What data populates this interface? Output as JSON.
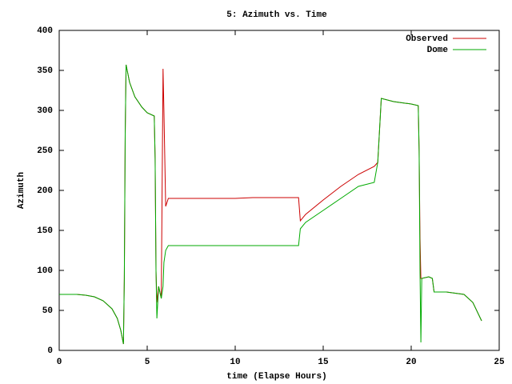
{
  "chart_data": {
    "type": "line",
    "title": "5: Azimuth vs. Time",
    "x_label": "time (Elapse Hours)",
    "y_label": "Azimuth",
    "x": [
      0,
      1,
      1.5,
      2,
      2.5,
      3,
      3.3,
      3.5,
      3.65,
      3.7,
      3.75,
      3.8,
      4,
      4.3,
      4.7,
      5,
      5.4,
      5.45,
      5.5,
      5.55,
      5.65,
      5.8,
      5.9,
      5.95,
      6.05,
      6.2,
      10,
      11,
      13.6,
      13.7,
      14,
      15,
      16,
      17,
      17.9,
      18.1,
      18.3,
      19,
      20,
      20.4,
      20.45,
      20.5,
      20.55,
      20.6,
      21,
      21.2,
      21.3,
      22,
      23,
      23.5,
      24
    ],
    "series": [
      {
        "name": "Observed",
        "color": "#cc0000",
        "values": [
          70,
          70,
          69,
          67,
          62,
          52,
          40,
          25,
          8,
          90,
          270,
          357,
          335,
          317,
          304,
          297,
          293,
          240,
          100,
          60,
          80,
          65,
          352,
          300,
          180,
          190,
          190,
          191,
          191,
          162,
          170,
          188,
          205,
          220,
          230,
          235,
          315,
          311,
          308,
          306,
          250,
          140,
          90,
          90,
          92,
          90,
          73,
          73,
          70,
          60,
          37
        ]
      },
      {
        "name": "Dome",
        "color": "#00aa00",
        "values": [
          70,
          70,
          69,
          67,
          62,
          52,
          40,
          25,
          8,
          90,
          270,
          357,
          335,
          317,
          304,
          297,
          293,
          240,
          100,
          40,
          80,
          65,
          80,
          110,
          125,
          131,
          131,
          131,
          131,
          152,
          160,
          175,
          190,
          205,
          210,
          235,
          315,
          311,
          308,
          306,
          250,
          100,
          10,
          90,
          92,
          90,
          73,
          73,
          70,
          60,
          37
        ]
      }
    ],
    "xlim": [
      0,
      25
    ],
    "xticks": [
      0,
      5,
      10,
      15,
      20,
      25
    ],
    "ylim": [
      0,
      400
    ],
    "yticks": [
      0,
      50,
      100,
      150,
      200,
      250,
      300,
      350,
      400
    ],
    "legend": "top-right"
  }
}
